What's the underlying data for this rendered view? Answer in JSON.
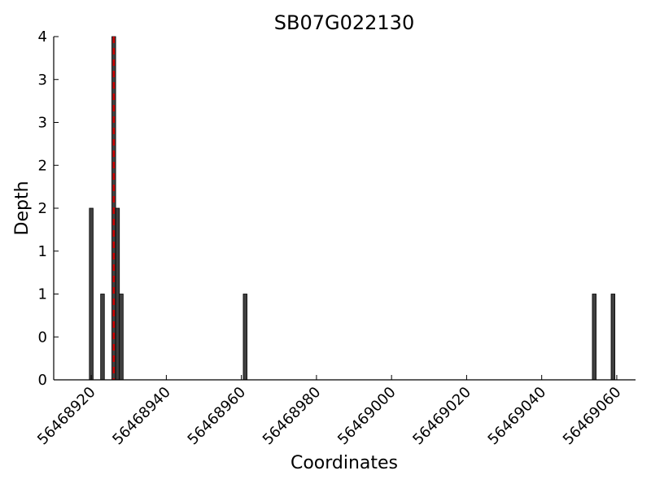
{
  "chart_data": {
    "type": "bar",
    "title": "SB07G022130",
    "xlabel": "Coordinates",
    "ylabel": "Depth",
    "xlim": [
      56468910,
      56469065
    ],
    "ylim": [
      0,
      4
    ],
    "xticks": [
      56468920,
      56468940,
      56468960,
      56468980,
      56469000,
      56469020,
      56469040,
      56469060
    ],
    "yticks": [
      0,
      0.5,
      1,
      1.5,
      2,
      2.5,
      3,
      3.5,
      4
    ],
    "ytick_labels": [
      "0",
      "0",
      "1",
      "1",
      "2",
      "2",
      "3",
      "3",
      "4"
    ],
    "bar_width": 1,
    "x": [
      56468920,
      56468923,
      56468926,
      56468927,
      56468928,
      56468961,
      56469054,
      56469059
    ],
    "values": [
      2,
      1,
      4,
      2,
      1,
      1,
      1,
      1
    ],
    "marker_x": 56468926,
    "marker_color": "#cc0000",
    "bar_color": "#404040",
    "grid": false
  }
}
